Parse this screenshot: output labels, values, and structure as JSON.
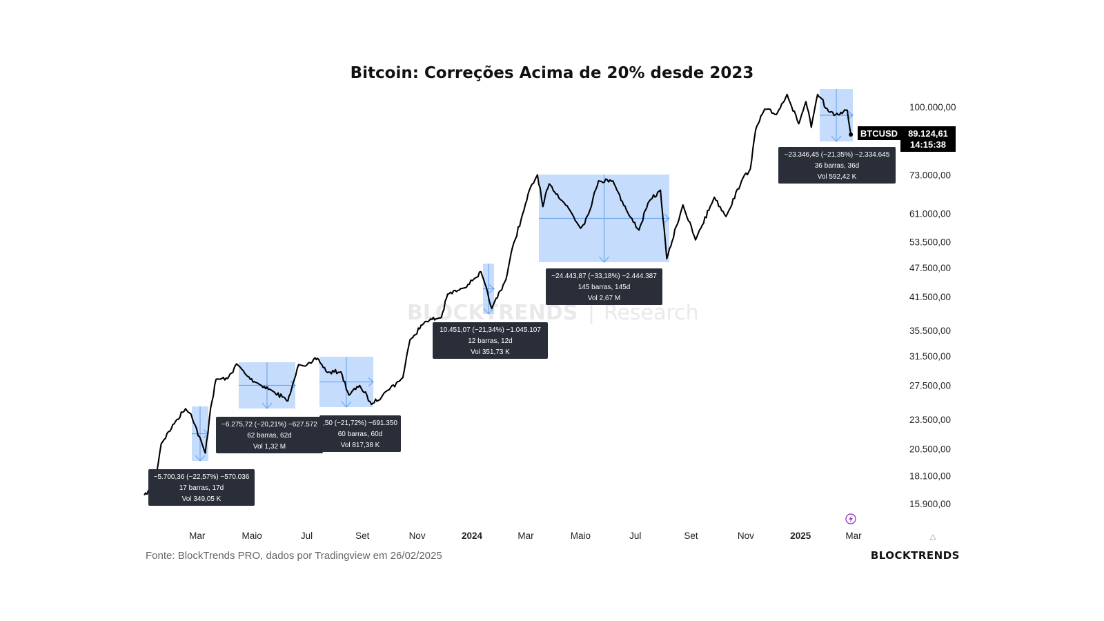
{
  "chart_data": {
    "type": "line",
    "title": "Bitcoin: Correções Acima de 20% desde 2023",
    "xlabel": "",
    "ylabel": "",
    "y_scale": "log",
    "grid": false,
    "x_ticks": [
      "Mar",
      "Maio",
      "Jul",
      "Set",
      "Nov",
      "2024",
      "Mar",
      "Maio",
      "Jul",
      "Set",
      "Nov",
      "2025",
      "Mar"
    ],
    "y_ticks": [
      "100.000,00",
      "73.000,00",
      "61.000,00",
      "53.500,00",
      "47.500,00",
      "41.500,00",
      "35.500,00",
      "31.500,00",
      "27.500,00",
      "23.500,00",
      "20.500,00",
      "18.100,00",
      "15.900,00"
    ],
    "series": [
      {
        "name": "BTCUSD",
        "x": [
          "2023-01-01",
          "2023-01-12",
          "2023-01-20",
          "2023-02-05",
          "2023-02-16",
          "2023-02-22",
          "2023-03-10",
          "2023-03-16",
          "2023-03-22",
          "2023-04-04",
          "2023-04-14",
          "2023-04-26",
          "2023-05-10",
          "2023-05-24",
          "2023-06-10",
          "2023-06-14",
          "2023-06-22",
          "2023-07-06",
          "2023-07-13",
          "2023-07-24",
          "2023-08-08",
          "2023-08-17",
          "2023-08-29",
          "2023-09-11",
          "2023-09-28",
          "2023-10-16",
          "2023-10-24",
          "2023-11-10",
          "2023-11-28",
          "2023-12-05",
          "2023-12-18",
          "2024-01-03",
          "2024-01-11",
          "2024-01-23",
          "2024-02-08",
          "2024-02-15",
          "2024-02-28",
          "2024-03-05",
          "2024-03-14",
          "2024-03-20",
          "2024-03-27",
          "2024-04-13",
          "2024-04-19",
          "2024-05-01",
          "2024-05-10",
          "2024-05-21",
          "2024-06-06",
          "2024-06-24",
          "2024-07-05",
          "2024-07-15",
          "2024-07-29",
          "2024-08-05",
          "2024-08-23",
          "2024-09-06",
          "2024-09-27",
          "2024-10-10",
          "2024-10-29",
          "2024-11-06",
          "2024-11-12",
          "2024-11-22",
          "2024-12-05",
          "2024-12-17",
          "2024-12-30",
          "2025-01-07",
          "2025-01-13",
          "2025-01-20",
          "2025-02-01",
          "2025-02-12",
          "2025-02-22",
          "2025-02-26"
        ],
        "values": [
          16550,
          17200,
          21000,
          23300,
          24700,
          24100,
          20100,
          24800,
          28300,
          28400,
          30400,
          28700,
          27600,
          26800,
          25600,
          27000,
          30300,
          30500,
          31200,
          29200,
          29300,
          26300,
          27500,
          25200,
          26800,
          28500,
          34000,
          37000,
          37700,
          42000,
          42800,
          45000,
          46600,
          39300,
          45000,
          52000,
          62000,
          68000,
          73000,
          63000,
          70000,
          64000,
          62000,
          57000,
          61000,
          71000,
          71000,
          60500,
          56500,
          64000,
          68000,
          49500,
          63500,
          54000,
          65800,
          60200,
          72000,
          75000,
          90000,
          99000,
          96500,
          106000,
          92500,
          102500,
          91000,
          106000,
          98000,
          96500,
          98500,
          88000
        ]
      }
    ],
    "corrections": [
      {
        "line1": "−5.700,36 (−22,57%) −570.036",
        "line2": "17 barras, 17d",
        "line3": "Vol 349,05 K"
      },
      {
        "line1": "−6.275,72 (−20,21%) −627.572",
        "line2": "62 barras, 62d",
        "line3": "Vol 1,32 M"
      },
      {
        "line1": ",50 (−21,72%) −691.350",
        "line2": "60 barras, 60d",
        "line3": "Vol 817,38 K"
      },
      {
        "line1": "10.451,07 (−21,34%) −1.045.107",
        "line2": "12 barras, 12d",
        "line3": "Vol 351,73 K"
      },
      {
        "line1": "−24.443,87 (−33,18%) −2.444.387",
        "line2": "145 barras, 145d",
        "line3": "Vol 2,67 M"
      },
      {
        "line1": "−23.346,45 (−21,35%) −2.334.645",
        "line2": "36 barras, 36d",
        "line3": "Vol 592,42 K"
      }
    ],
    "last_price": {
      "symbol": "BTCUSD",
      "value": "89.124,61",
      "countdown": "14:15:38"
    }
  },
  "footer": {
    "source": "Fonte: BlockTrends PRO, dados por Tradingview em 26/02/2025",
    "brand": "BLOCKTRENDS"
  },
  "watermark": {
    "brand": "BLOCKTRENDS",
    "separator": "|",
    "suffix": "Research"
  },
  "colors": {
    "line": "#000000",
    "box_fill": "#bcd6fb",
    "box_stroke": "#6fa6ef",
    "label_bg": "#2a2e39",
    "price_tag_bg": "#000000",
    "lightning": "#9b3ec2"
  },
  "icons": {
    "lightning": "lightning-icon",
    "alert": "triangle-icon"
  }
}
